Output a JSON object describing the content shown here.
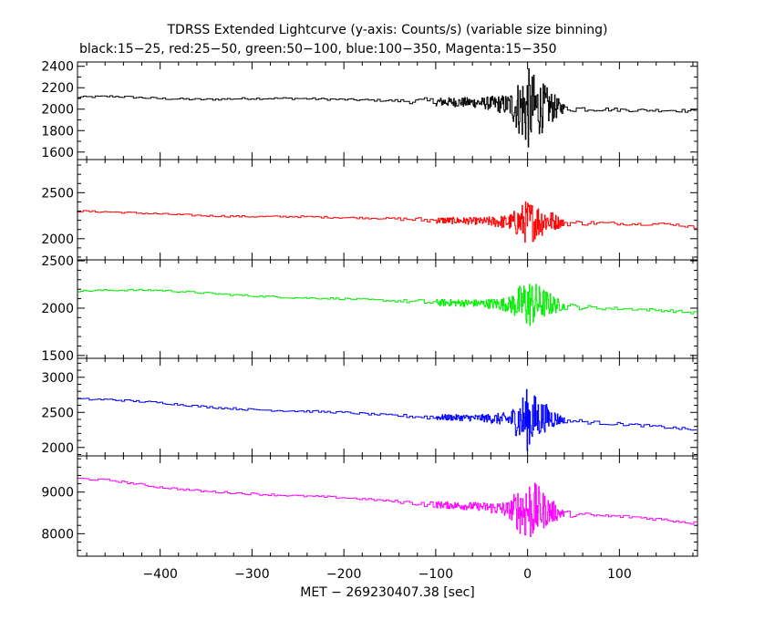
{
  "title": "TDRSS Extended Lightcurve (y-axis: Counts/s) (variable size binning)",
  "subtitle": "black:15−25, red:25−50, green:50−100, blue:100−350, Magenta:15−350",
  "chart_data": {
    "type": "line",
    "xlabel": "MET − 269230407.38 [sec]",
    "xlim": [
      -490,
      185
    ],
    "x_ticks": [
      -400,
      -300,
      -200,
      -100,
      0,
      100
    ],
    "x_tick_labels": [
      "−400",
      "−300",
      "−200",
      "−100",
      "0",
      "100"
    ],
    "panels": [
      {
        "name": "15-25",
        "color": "#000000",
        "ylim": [
          1530,
          2440
        ],
        "y_ticks": [
          1600,
          1800,
          2000,
          2200,
          2400
        ],
        "x": [
          -490,
          -450,
          -400,
          -350,
          -300,
          -250,
          -200,
          -150,
          -100,
          -50,
          -20,
          0,
          20,
          40,
          80,
          120,
          160,
          185
        ],
        "y": [
          2110,
          2120,
          2100,
          2090,
          2100,
          2100,
          2090,
          2080,
          2070,
          2060,
          2040,
          2000,
          2020,
          2010,
          2000,
          1990,
          1990,
          1980
        ],
        "noise": [
          10,
          10,
          10,
          10,
          10,
          10,
          10,
          10,
          40,
          50,
          100,
          400,
          200,
          40,
          20,
          15,
          15,
          15
        ]
      },
      {
        "name": "25-50",
        "color": "#ff0000",
        "ylim": [
          1770,
          2860
        ],
        "y_ticks": [
          2000,
          2500
        ],
        "x": [
          -490,
          -450,
          -400,
          -350,
          -300,
          -250,
          -200,
          -150,
          -100,
          -50,
          -20,
          0,
          20,
          40,
          80,
          120,
          160,
          185
        ],
        "y": [
          2300,
          2290,
          2270,
          2250,
          2240,
          2240,
          2230,
          2220,
          2200,
          2190,
          2180,
          2180,
          2200,
          2170,
          2170,
          2160,
          2160,
          2120
        ],
        "noise": [
          10,
          10,
          10,
          10,
          10,
          10,
          10,
          10,
          35,
          40,
          80,
          250,
          150,
          35,
          20,
          15,
          15,
          15
        ]
      },
      {
        "name": "50-100",
        "color": "#00ee00",
        "ylim": [
          1470,
          2510
        ],
        "y_ticks": [
          1500,
          2000,
          2500
        ],
        "x": [
          -490,
          -450,
          -400,
          -350,
          -300,
          -250,
          -200,
          -150,
          -100,
          -50,
          -20,
          0,
          20,
          40,
          80,
          120,
          160,
          185
        ],
        "y": [
          2180,
          2190,
          2190,
          2160,
          2130,
          2110,
          2100,
          2080,
          2060,
          2050,
          2040,
          2050,
          2050,
          2020,
          2000,
          1990,
          1970,
          1950
        ],
        "noise": [
          10,
          10,
          10,
          10,
          10,
          10,
          10,
          10,
          35,
          40,
          80,
          280,
          150,
          35,
          20,
          15,
          15,
          15
        ]
      },
      {
        "name": "100-350",
        "color": "#0000ff",
        "ylim": [
          1880,
          3270
        ],
        "y_ticks": [
          2000,
          2500,
          3000
        ],
        "x": [
          -490,
          -450,
          -400,
          -350,
          -300,
          -250,
          -200,
          -150,
          -100,
          -50,
          -20,
          0,
          20,
          40,
          80,
          120,
          160,
          185
        ],
        "y": [
          2690,
          2680,
          2640,
          2580,
          2540,
          2520,
          2500,
          2460,
          2430,
          2420,
          2400,
          2400,
          2430,
          2390,
          2350,
          2320,
          2280,
          2250
        ],
        "noise": [
          15,
          15,
          15,
          15,
          15,
          15,
          15,
          15,
          40,
          50,
          100,
          450,
          200,
          40,
          25,
          20,
          20,
          20
        ]
      },
      {
        "name": "15-350",
        "color": "#ff00ff",
        "ylim": [
          7460,
          9870
        ],
        "y_ticks": [
          8000,
          9000
        ],
        "x": [
          -490,
          -450,
          -400,
          -350,
          -300,
          -250,
          -200,
          -150,
          -100,
          -50,
          -20,
          0,
          20,
          40,
          80,
          120,
          160,
          185
        ],
        "y": [
          9330,
          9280,
          9120,
          9020,
          8960,
          8910,
          8870,
          8790,
          8700,
          8650,
          8580,
          8580,
          8560,
          8480,
          8430,
          8400,
          8320,
          8250
        ],
        "noise": [
          25,
          25,
          25,
          25,
          25,
          25,
          25,
          25,
          80,
          100,
          200,
          850,
          400,
          80,
          50,
          40,
          40,
          40
        ]
      }
    ]
  }
}
